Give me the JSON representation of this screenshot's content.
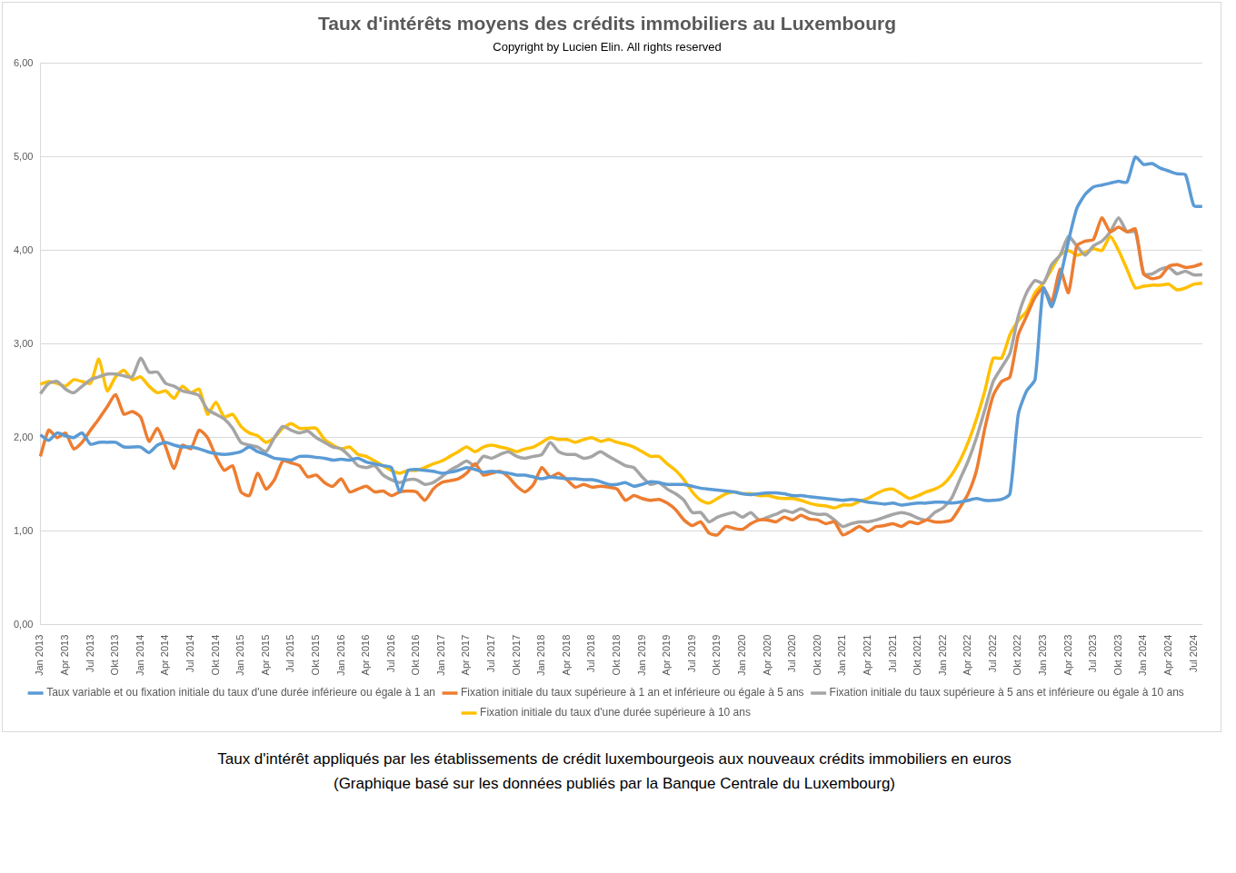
{
  "chart_data": {
    "type": "line",
    "title": "Taux d'intérêts moyens des crédits immobiliers au Luxembourg",
    "subtitle": "Copyright by Lucien Elin. All rights reserved",
    "caption": [
      "Taux d'intérêt appliqués par les établissements de crédit luxembourgeois aux nouveaux crédits immobiliers en euros",
      "(Graphique basé sur les données publiés par la Banque Centrale du Luxembourg)"
    ],
    "categories": [
      "Jan 2013",
      null,
      null,
      "Apr 2013",
      null,
      null,
      "Jul 2013",
      null,
      null,
      "Okt 2013",
      null,
      null,
      "Jan 2014",
      null,
      null,
      "Apr 2014",
      null,
      null,
      "Jul 2014",
      null,
      null,
      "Okt 2014",
      null,
      null,
      "Jan 2015",
      null,
      null,
      "Apr 2015",
      null,
      null,
      "Jul 2015",
      null,
      null,
      "Okt 2015",
      null,
      null,
      "Jan 2016",
      null,
      null,
      "Apr 2016",
      null,
      null,
      "Jul 2016",
      null,
      null,
      "Okt 2016",
      null,
      null,
      "Jan 2017",
      null,
      null,
      "Apr 2017",
      null,
      null,
      "Jul 2017",
      null,
      null,
      "Okt 2017",
      null,
      null,
      "Jan 2018",
      null,
      null,
      "Apr 2018",
      null,
      null,
      "Jul 2018",
      null,
      null,
      "Okt 2018",
      null,
      null,
      "Jan 2019",
      null,
      null,
      "Apr 2019",
      null,
      null,
      "Jul 2019",
      null,
      null,
      "Okt 2019",
      null,
      null,
      "Jan 2020",
      null,
      null,
      "Apr 2020",
      null,
      null,
      "Jul 2020",
      null,
      null,
      "Okt 2020",
      null,
      null,
      "Jan 2021",
      null,
      null,
      "Apr 2021",
      null,
      null,
      "Jul 2021",
      null,
      null,
      "Okt 2021",
      null,
      null,
      "Jan 2022",
      null,
      null,
      "Apr 2022",
      null,
      null,
      "Jul 2022",
      null,
      null,
      "Okt 2022",
      null,
      null,
      "Jan 2023",
      null,
      null,
      "Apr 2023",
      null,
      null,
      "Jul 2023",
      null,
      null,
      "Okt 2023",
      null,
      null,
      "Jan 2024",
      null,
      null,
      "Apr 2024",
      null,
      null,
      "Jul 2024",
      null
    ],
    "series": [
      {
        "name": "Taux variable et ou fixation initiale du taux d'une durée inférieure ou égale à 1 an",
        "color": "#5b9bd5",
        "values": [
          2.03,
          1.97,
          2.05,
          2.02,
          2.0,
          2.05,
          1.93,
          1.95,
          1.95,
          1.95,
          1.9,
          1.9,
          1.9,
          1.84,
          1.92,
          1.95,
          1.92,
          1.9,
          1.9,
          1.88,
          1.85,
          1.83,
          1.82,
          1.83,
          1.85,
          1.9,
          1.85,
          1.82,
          1.78,
          1.77,
          1.76,
          1.8,
          1.8,
          1.79,
          1.78,
          1.76,
          1.77,
          1.76,
          1.78,
          1.74,
          1.72,
          1.7,
          1.68,
          1.42,
          1.65,
          1.66,
          1.65,
          1.64,
          1.62,
          1.63,
          1.65,
          1.68,
          1.66,
          1.63,
          1.64,
          1.63,
          1.62,
          1.6,
          1.6,
          1.58,
          1.56,
          1.58,
          1.57,
          1.56,
          1.56,
          1.55,
          1.55,
          1.53,
          1.5,
          1.5,
          1.52,
          1.48,
          1.5,
          1.53,
          1.52,
          1.5,
          1.5,
          1.5,
          1.48,
          1.46,
          1.45,
          1.44,
          1.43,
          1.42,
          1.4,
          1.39,
          1.4,
          1.41,
          1.41,
          1.4,
          1.38,
          1.38,
          1.37,
          1.36,
          1.35,
          1.34,
          1.33,
          1.34,
          1.33,
          1.31,
          1.3,
          1.29,
          1.3,
          1.28,
          1.29,
          1.3,
          1.3,
          1.31,
          1.31,
          1.3,
          1.31,
          1.33,
          1.35,
          1.33,
          1.33,
          1.34,
          1.4,
          2.25,
          2.5,
          2.62,
          3.6,
          3.4,
          3.7,
          4.1,
          4.45,
          4.6,
          4.68,
          4.7,
          4.72,
          4.74,
          4.73,
          5.0,
          4.92,
          4.93,
          4.88,
          4.85,
          4.82,
          4.81,
          4.48,
          4.47
        ]
      },
      {
        "name": "Fixation initiale du taux supérieure à 1 an et inférieure ou égale à 5 ans",
        "color": "#ed7d31",
        "values": [
          1.8,
          2.08,
          2.0,
          2.05,
          1.88,
          1.95,
          2.08,
          2.2,
          2.33,
          2.46,
          2.25,
          2.28,
          2.22,
          1.96,
          2.1,
          1.9,
          1.67,
          1.92,
          1.88,
          2.08,
          2.0,
          1.8,
          1.65,
          1.7,
          1.42,
          1.38,
          1.62,
          1.45,
          1.55,
          1.75,
          1.73,
          1.7,
          1.58,
          1.6,
          1.52,
          1.48,
          1.56,
          1.42,
          1.45,
          1.48,
          1.42,
          1.43,
          1.38,
          1.42,
          1.43,
          1.42,
          1.33,
          1.45,
          1.52,
          1.54,
          1.56,
          1.62,
          1.72,
          1.6,
          1.62,
          1.64,
          1.58,
          1.48,
          1.42,
          1.5,
          1.68,
          1.58,
          1.62,
          1.55,
          1.47,
          1.5,
          1.47,
          1.48,
          1.47,
          1.45,
          1.33,
          1.38,
          1.35,
          1.33,
          1.34,
          1.3,
          1.23,
          1.12,
          1.06,
          1.1,
          0.98,
          0.96,
          1.05,
          1.03,
          1.02,
          1.08,
          1.12,
          1.12,
          1.1,
          1.15,
          1.12,
          1.17,
          1.13,
          1.12,
          1.08,
          1.1,
          0.96,
          1.0,
          1.05,
          1.0,
          1.05,
          1.06,
          1.08,
          1.05,
          1.1,
          1.08,
          1.12,
          1.1,
          1.1,
          1.12,
          1.25,
          1.4,
          1.65,
          2.1,
          2.45,
          2.6,
          2.65,
          3.1,
          3.3,
          3.5,
          3.6,
          3.45,
          3.8,
          3.55,
          4.05,
          4.1,
          4.12,
          4.35,
          4.2,
          4.25,
          4.2,
          4.23,
          3.75,
          3.7,
          3.72,
          3.83,
          3.85,
          3.82,
          3.83,
          3.86
        ]
      },
      {
        "name": "Fixation initiale du taux supérieure à 5 ans et inférieure ou égale à 10 ans",
        "color": "#a5a5a5",
        "values": [
          2.47,
          2.58,
          2.6,
          2.52,
          2.48,
          2.55,
          2.62,
          2.65,
          2.68,
          2.68,
          2.66,
          2.65,
          2.85,
          2.7,
          2.7,
          2.58,
          2.55,
          2.5,
          2.48,
          2.45,
          2.3,
          2.25,
          2.2,
          2.1,
          1.95,
          1.92,
          1.9,
          1.85,
          2.0,
          2.12,
          2.08,
          2.05,
          2.07,
          2.0,
          1.95,
          1.9,
          1.88,
          1.8,
          1.7,
          1.68,
          1.7,
          1.6,
          1.55,
          1.52,
          1.55,
          1.55,
          1.5,
          1.52,
          1.58,
          1.65,
          1.7,
          1.75,
          1.7,
          1.8,
          1.78,
          1.82,
          1.85,
          1.8,
          1.78,
          1.8,
          1.82,
          1.95,
          1.85,
          1.82,
          1.82,
          1.78,
          1.8,
          1.85,
          1.8,
          1.75,
          1.7,
          1.68,
          1.58,
          1.5,
          1.52,
          1.45,
          1.4,
          1.33,
          1.2,
          1.2,
          1.1,
          1.15,
          1.18,
          1.2,
          1.15,
          1.2,
          1.12,
          1.15,
          1.18,
          1.22,
          1.2,
          1.24,
          1.2,
          1.18,
          1.18,
          1.12,
          1.05,
          1.08,
          1.1,
          1.1,
          1.12,
          1.15,
          1.18,
          1.2,
          1.18,
          1.14,
          1.12,
          1.2,
          1.25,
          1.35,
          1.55,
          1.75,
          2.0,
          2.3,
          2.6,
          2.75,
          2.9,
          3.3,
          3.55,
          3.68,
          3.65,
          3.85,
          3.95,
          4.15,
          4.05,
          3.95,
          4.05,
          4.1,
          4.2,
          4.35,
          4.2,
          4.2,
          3.75,
          3.75,
          3.8,
          3.82,
          3.75,
          3.78,
          3.74,
          3.74
        ]
      },
      {
        "name": "Fixation initiale du taux d'une durée supérieure à 10 ans",
        "color": "#ffc000",
        "values": [
          2.57,
          2.6,
          2.58,
          2.55,
          2.62,
          2.6,
          2.58,
          2.84,
          2.5,
          2.65,
          2.72,
          2.62,
          2.65,
          2.55,
          2.48,
          2.5,
          2.42,
          2.55,
          2.48,
          2.52,
          2.25,
          2.38,
          2.22,
          2.25,
          2.12,
          2.05,
          2.02,
          1.95,
          2.0,
          2.1,
          2.15,
          2.1,
          2.1,
          2.1,
          1.98,
          1.92,
          1.88,
          1.9,
          1.82,
          1.8,
          1.75,
          1.7,
          1.65,
          1.62,
          1.65,
          1.65,
          1.68,
          1.72,
          1.75,
          1.8,
          1.85,
          1.9,
          1.85,
          1.9,
          1.92,
          1.9,
          1.88,
          1.85,
          1.88,
          1.9,
          1.95,
          2.0,
          1.98,
          1.98,
          1.95,
          1.98,
          2.0,
          1.96,
          1.98,
          1.95,
          1.93,
          1.9,
          1.85,
          1.8,
          1.8,
          1.72,
          1.65,
          1.55,
          1.42,
          1.33,
          1.3,
          1.35,
          1.4,
          1.42,
          1.4,
          1.4,
          1.38,
          1.38,
          1.36,
          1.35,
          1.35,
          1.33,
          1.3,
          1.28,
          1.27,
          1.25,
          1.28,
          1.28,
          1.32,
          1.35,
          1.4,
          1.44,
          1.45,
          1.4,
          1.35,
          1.38,
          1.42,
          1.45,
          1.5,
          1.6,
          1.75,
          1.95,
          2.2,
          2.5,
          2.85,
          2.85,
          3.1,
          3.25,
          3.35,
          3.55,
          3.65,
          3.8,
          3.95,
          4.0,
          3.95,
          3.98,
          4.02,
          4.0,
          4.15,
          4.0,
          3.8,
          3.6,
          3.62,
          3.63,
          3.63,
          3.64,
          3.58,
          3.6,
          3.64,
          3.65
        ]
      }
    ],
    "ylim": [
      0,
      6
    ],
    "yticks": [
      {
        "value": 0,
        "label": "0,00"
      },
      {
        "value": 1,
        "label": "1,00"
      },
      {
        "value": 2,
        "label": "2,00"
      },
      {
        "value": 3,
        "label": "3,00"
      },
      {
        "value": 4,
        "label": "4,00"
      },
      {
        "value": 5,
        "label": "5,00"
      },
      {
        "value": 6,
        "label": "6,00"
      }
    ],
    "grid": true,
    "legend": "bottom"
  }
}
